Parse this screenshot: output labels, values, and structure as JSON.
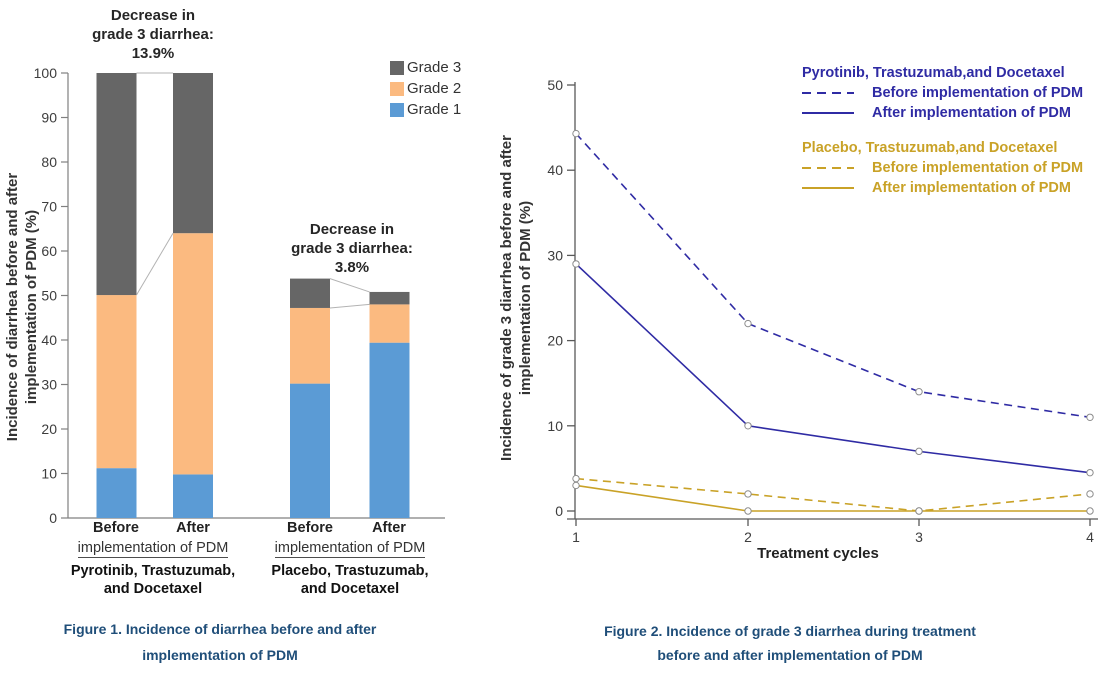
{
  "colors": {
    "grade1_blue": "#5B9BD5",
    "grade2_orange": "#FBBA80",
    "grade3_gray": "#666666",
    "pyrotinib_navy": "#2F2BA4",
    "placebo_gold": "#C9A227",
    "caption_blue": "#1F4E79"
  },
  "figure1": {
    "ylabel": "Incidence of diarrhea before and after\nimplementation of PDM (%)",
    "legend": [
      {
        "label": "Grade 3",
        "color": "#666666"
      },
      {
        "label": "Grade 2",
        "color": "#FBBA80"
      },
      {
        "label": "Grade 1",
        "color": "#5B9BD5"
      }
    ],
    "annotations": [
      "Decrease in\ngrade 3 diarrhea:\n13.9%",
      "Decrease in\ngrade 3 diarrhea:\n3.8%"
    ],
    "groups": [
      {
        "before": "Before",
        "after": "After",
        "axis_label": "implementation of PDM",
        "name": "Pyrotinib, Trastuzumab,\nand Docetaxel"
      },
      {
        "before": "Before",
        "after": "After",
        "axis_label": "implementation of PDM",
        "name": "Placebo, Trastuzumab,\nand Docetaxel"
      }
    ],
    "caption": "Figure 1. Incidence of diarrhea before and after\nimplementation of PDM"
  },
  "figure2": {
    "ylabel": "Incidence of grade 3 diarrhea before and after\nimplementation of PDM (%)",
    "xlabel": "Treatment cycles",
    "legend_groups": [
      {
        "title": "Pyrotinib, Trastuzumab,and Docetaxel",
        "color": "#2F2BA4",
        "entries": [
          {
            "label": "Before implementation of PDM",
            "style": "dashed"
          },
          {
            "label": "After implementation of PDM",
            "style": "solid"
          }
        ]
      },
      {
        "title": "Placebo, Trastuzumab,and Docetaxel",
        "color": "#C9A227",
        "entries": [
          {
            "label": "Before implementation of PDM",
            "style": "dashed"
          },
          {
            "label": "After implementation of PDM",
            "style": "solid"
          }
        ]
      }
    ],
    "caption": "Figure 2. Incidence of grade 3 diarrhea during treatment\nbefore and after implementation of PDM"
  },
  "chart_data": [
    {
      "figure": "Figure 1",
      "type": "bar",
      "stacked": true,
      "categories": [
        "Before implementation of PDM (Pyrotinib, Trastuzumab, and Docetaxel)",
        "After implementation of PDM (Pyrotinib, Trastuzumab, and Docetaxel)",
        "Before implementation of PDM (Placebo, Trastuzumab, and Docetaxel)",
        "After implementation of PDM (Placebo, Trastuzumab, and Docetaxel)"
      ],
      "series": [
        {
          "name": "Grade 1",
          "color": "#5B9BD5",
          "values": [
            11.2,
            9.8,
            30.2,
            39.4
          ]
        },
        {
          "name": "Grade 2",
          "color": "#FBBA80",
          "values": [
            38.9,
            54.2,
            17.0,
            8.6
          ]
        },
        {
          "name": "Grade 3",
          "color": "#666666",
          "values": [
            49.9,
            36.0,
            6.6,
            2.8
          ]
        }
      ],
      "ylabel": "Incidence of diarrhea before and after implementation of PDM (%)",
      "ylim": [
        0,
        100
      ],
      "yticks": [
        0,
        10,
        20,
        30,
        40,
        50,
        60,
        70,
        80,
        90,
        100
      ],
      "annotations": [
        "Decrease in grade 3 diarrhea: 13.9%",
        "Decrease in grade 3 diarrhea: 3.8%"
      ],
      "legend_position": "upper right",
      "grid": false
    },
    {
      "figure": "Figure 2",
      "type": "line",
      "x": [
        1,
        2,
        3,
        4
      ],
      "xlabel": "Treatment cycles",
      "ylabel": "Incidence of grade 3 diarrhea before and after implementation of PDM (%)",
      "ylim": [
        0,
        50
      ],
      "yticks": [
        0,
        10,
        20,
        30,
        40,
        50
      ],
      "series": [
        {
          "name": "Pyrotinib, Trastuzumab,and Docetaxel - Before implementation of PDM",
          "color": "#2F2BA4",
          "style": "dashed",
          "values": [
            44.3,
            22,
            14,
            11
          ]
        },
        {
          "name": "Pyrotinib, Trastuzumab,and Docetaxel - After implementation of PDM",
          "color": "#2F2BA4",
          "style": "solid",
          "values": [
            29,
            10,
            7,
            4.5
          ]
        },
        {
          "name": "Placebo, Trastuzumab,and Docetaxel - Before implementation of PDM",
          "color": "#C9A227",
          "style": "dashed",
          "values": [
            3.8,
            2,
            0,
            2
          ]
        },
        {
          "name": "Placebo, Trastuzumab,and Docetaxel - After implementation of PDM",
          "color": "#C9A227",
          "style": "solid",
          "values": [
            3,
            0,
            0,
            0
          ]
        }
      ],
      "marker": "open-circle",
      "grid": false,
      "legend_position": "upper right"
    }
  ]
}
